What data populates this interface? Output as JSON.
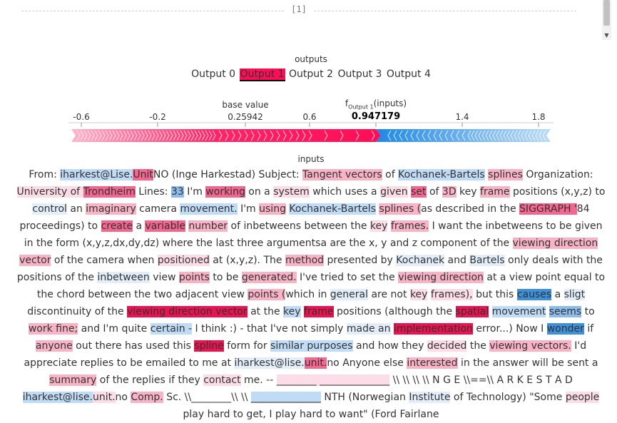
{
  "cell_index": "[1]",
  "outputs_title": "outputs",
  "output_tabs": [
    "Output 0",
    "Output 1",
    "Output 2",
    "Output 3",
    "Output 4"
  ],
  "active_output": "Output 1",
  "axis": {
    "ticks": [
      "-0.6",
      "-0.2",
      "0.25942",
      "0.6",
      "0.947179",
      "1.4",
      "1.8"
    ],
    "base_value_label": "base value",
    "base_value": "0.25942",
    "f_label_main": "f",
    "f_label_sub": "Output 1",
    "f_label_tail": "(inputs)",
    "f_value": "0.947179"
  },
  "colors": {
    "positive": "#ff0d57",
    "negative": "#1e88e5"
  },
  "inputs_title": "inputs",
  "tokens": [
    [
      "From: ",
      ""
    ],
    [
      "iharkest@Lise.",
      "b1"
    ],
    [
      "Unit",
      "r2"
    ],
    [
      "NO (Inge Harkestad) Subject: ",
      ""
    ],
    [
      "Tangent vectors",
      "r1"
    ],
    [
      " of ",
      ""
    ],
    [
      "Kochanek-Bartels",
      "b1"
    ],
    [
      " ",
      ""
    ],
    [
      "splines",
      "r1"
    ],
    [
      " Organization: ",
      ""
    ],
    [
      "University of ",
      "r0"
    ],
    [
      "Trondheim",
      "r2"
    ],
    [
      " Lines: ",
      ""
    ],
    [
      "33",
      "b2"
    ],
    [
      " I'm ",
      ""
    ],
    [
      "working",
      "r2"
    ],
    [
      " on a ",
      ""
    ],
    [
      "system",
      "r0"
    ],
    [
      " which uses a ",
      ""
    ],
    [
      "given",
      "r0"
    ],
    [
      " ",
      ""
    ],
    [
      "set",
      "r2"
    ],
    [
      " of ",
      ""
    ],
    [
      "3D",
      "r1"
    ],
    [
      " key ",
      ""
    ],
    [
      "frame",
      "r1"
    ],
    [
      " positions (x,y,z) to ",
      ""
    ],
    [
      "control",
      "b0"
    ],
    [
      " an ",
      ""
    ],
    [
      "imaginary",
      "r1"
    ],
    [
      " camera ",
      ""
    ],
    [
      "movement.",
      "b1"
    ],
    [
      " I'm ",
      ""
    ],
    [
      "using",
      "r1"
    ],
    [
      " ",
      ""
    ],
    [
      "Kochanek-Bartels",
      "b1"
    ],
    [
      " ",
      ""
    ],
    [
      "splines (",
      "r1"
    ],
    [
      "as described in the ",
      ""
    ],
    [
      "SIGGRAPH '",
      "r2"
    ],
    [
      "84 proceedings) to ",
      ""
    ],
    [
      "create",
      "r2"
    ],
    [
      " a ",
      ""
    ],
    [
      "variable",
      "r2"
    ],
    [
      " ",
      ""
    ],
    [
      "number",
      "r1"
    ],
    [
      " of inbetweens between the ",
      ""
    ],
    [
      "key",
      "r0"
    ],
    [
      " ",
      ""
    ],
    [
      "frames.",
      "r1"
    ],
    [
      " I want the inbetweens to be given in the form (x,y,z,dx,dy,dz) where the last three argumentsa are the x, y and z component of the ",
      ""
    ],
    [
      "viewing direction vector",
      "r1"
    ],
    [
      " of the camera when ",
      ""
    ],
    [
      "positioned",
      "r0"
    ],
    [
      " at (x,y,z). The ",
      ""
    ],
    [
      "method",
      "r1"
    ],
    [
      " presented by ",
      ""
    ],
    [
      "Kochanek",
      "b0"
    ],
    [
      " and ",
      ""
    ],
    [
      "Bartels",
      "b0"
    ],
    [
      " only deals with the positions of the ",
      ""
    ],
    [
      "inbetween",
      "b0"
    ],
    [
      " view ",
      ""
    ],
    [
      "points",
      "r1"
    ],
    [
      " to be ",
      ""
    ],
    [
      "generated.",
      "r1"
    ],
    [
      " I've tried to set the ",
      ""
    ],
    [
      "viewing direction",
      "r1"
    ],
    [
      " at a view point equal to the chord between the two adjacent view ",
      ""
    ],
    [
      "points (",
      "r1"
    ],
    [
      "which in ",
      ""
    ],
    [
      "general",
      "b0"
    ],
    [
      " are not ",
      ""
    ],
    [
      "key",
      "r0"
    ],
    [
      " ",
      ""
    ],
    [
      "frames),",
      "r0"
    ],
    [
      " but this ",
      ""
    ],
    [
      "causes",
      "b3"
    ],
    [
      " a ",
      ""
    ],
    [
      "sligt",
      "b0"
    ],
    [
      " discontinuity of the ",
      ""
    ],
    [
      "viewing direction vector",
      "r3"
    ],
    [
      " at the ",
      ""
    ],
    [
      "key",
      "b1"
    ],
    [
      " ",
      ""
    ],
    [
      "frame",
      "r3"
    ],
    [
      " positions (although the ",
      ""
    ],
    [
      "spatial",
      "r3"
    ],
    [
      " ",
      ""
    ],
    [
      "movement",
      "b1"
    ],
    [
      " ",
      ""
    ],
    [
      "seems",
      "b2"
    ],
    [
      " to ",
      ""
    ],
    [
      "work fine;",
      "r1"
    ],
    [
      " and I'm quite ",
      ""
    ],
    [
      "certain -",
      "b1"
    ],
    [
      " I think :) - that I've not simply ",
      ""
    ],
    [
      "made an",
      "b0"
    ],
    [
      " ",
      ""
    ],
    [
      "implementation",
      "r3"
    ],
    [
      " error...) Now I ",
      ""
    ],
    [
      "wonder",
      "b3"
    ],
    [
      " if ",
      ""
    ],
    [
      "anyone",
      "r1"
    ],
    [
      " out there has used this ",
      ""
    ],
    [
      "spline",
      "r3"
    ],
    [
      " form for ",
      ""
    ],
    [
      "similar purposes",
      "b1"
    ],
    [
      " and how they ",
      ""
    ],
    [
      "decided",
      "r0"
    ],
    [
      " the ",
      ""
    ],
    [
      "viewing vectors.",
      "r1"
    ],
    [
      " I'd appreciate replies to be emailed to me at ",
      ""
    ],
    [
      "iharkest@lise.",
      "b0"
    ],
    [
      "unit.",
      "r2"
    ],
    [
      "no Anyone else ",
      ""
    ],
    [
      "interested",
      "r1"
    ],
    [
      " in the answer will be sent a ",
      ""
    ],
    [
      "summary",
      "r1"
    ],
    [
      " of the replies if they ",
      ""
    ],
    [
      "contact",
      "r0"
    ],
    [
      " me. -- ",
      ""
    ],
    [
      "________ ______________",
      "r0"
    ],
    [
      " \\\\ \\\\ \\\\ \\\\ N G E \\\\==\\\\ A R K E S T A D ",
      ""
    ],
    [
      "iharkest@lise.",
      "b1"
    ],
    [
      "unit.",
      "r0"
    ],
    [
      "no ",
      ""
    ],
    [
      "Comp.",
      "r1"
    ],
    [
      " Sc. \\\\________\\\\ \\\\ ",
      ""
    ],
    [
      "______________",
      "b1"
    ],
    [
      " NTH (Norwegian ",
      ""
    ],
    [
      "Institute",
      "b0"
    ],
    [
      " of Technology) \"Some ",
      ""
    ],
    [
      "people",
      "r0"
    ],
    [
      " play hard to get, I play hard to want\" (Ford Fairlane",
      ""
    ]
  ]
}
